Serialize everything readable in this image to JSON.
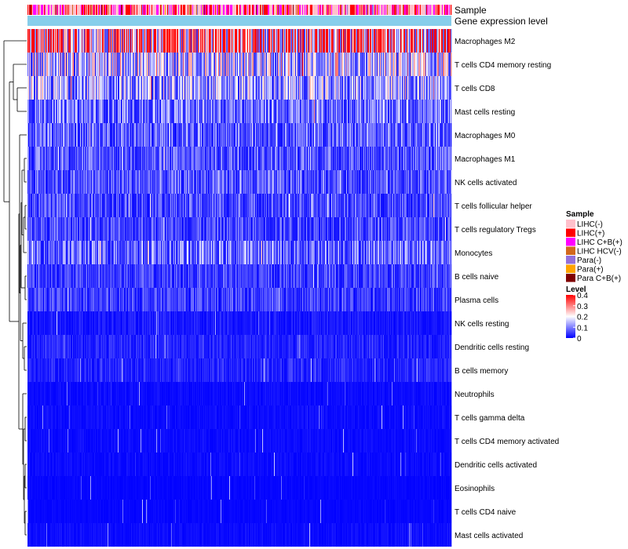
{
  "chart_data": {
    "type": "heatmap",
    "title": "",
    "n_samples": 540,
    "annotation_tracks": [
      "Sample",
      "Gene expression level"
    ],
    "rows": [
      {
        "label": "Macrophages M2",
        "mean": 0.32
      },
      {
        "label": "T cells CD4 memory resting",
        "mean": 0.16
      },
      {
        "label": "T cells CD8",
        "mean": 0.13
      },
      {
        "label": "Mast cells resting",
        "mean": 0.09
      },
      {
        "label": "Macrophages M0",
        "mean": 0.08
      },
      {
        "label": "Macrophages M1",
        "mean": 0.07
      },
      {
        "label": "NK cells activated",
        "mean": 0.07
      },
      {
        "label": "T cells follicular helper",
        "mean": 0.06
      },
      {
        "label": "T cells regulatory  Tregs",
        "mean": 0.06
      },
      {
        "label": "Monocytes",
        "mean": 0.09
      },
      {
        "label": "B cells naive",
        "mean": 0.05
      },
      {
        "label": "Plasma cells",
        "mean": 0.05
      },
      {
        "label": "NK cells resting",
        "mean": 0.02
      },
      {
        "label": "Dendritic cells resting",
        "mean": 0.03
      },
      {
        "label": "B cells memory",
        "mean": 0.03
      },
      {
        "label": "Neutrophils",
        "mean": 0.01
      },
      {
        "label": "T cells gamma delta",
        "mean": 0.01
      },
      {
        "label": "T cells CD4 memory activated",
        "mean": 0.01
      },
      {
        "label": "Dendritic cells activated",
        "mean": 0.01
      },
      {
        "label": "Eosinophils",
        "mean": 0.005
      },
      {
        "label": "T cells CD4 naive",
        "mean": 0.005
      },
      {
        "label": "Mast cells activated",
        "mean": 0.01
      }
    ],
    "legend_sample": {
      "title": "Sample",
      "entries": [
        {
          "label": "LIHC(-)",
          "color": "#FFC0CB"
        },
        {
          "label": "LIHC(+)",
          "color": "#FF0000"
        },
        {
          "label": "LIHC C+B(+)",
          "color": "#FF00FF"
        },
        {
          "label": "LIHC HCV(-)",
          "color": "#D2691E"
        },
        {
          "label": "Para(-)",
          "color": "#9370DB"
        },
        {
          "label": "Para(+)",
          "color": "#FFA500"
        },
        {
          "label": "Para C+B(+)",
          "color": "#800000"
        }
      ]
    },
    "legend_level": {
      "title": "Level",
      "ticks": [
        0.4,
        0.3,
        0.2,
        0.1,
        0
      ],
      "tick_labels": [
        "0.4",
        "0.3",
        "0.2",
        "0.1",
        "0"
      ],
      "range": [
        0,
        0.4
      ],
      "colors": {
        "low": "#0000FF",
        "mid": "#FFFFFF",
        "high": "#FF0000"
      }
    },
    "gene_expression_color": "#87CEEB"
  }
}
